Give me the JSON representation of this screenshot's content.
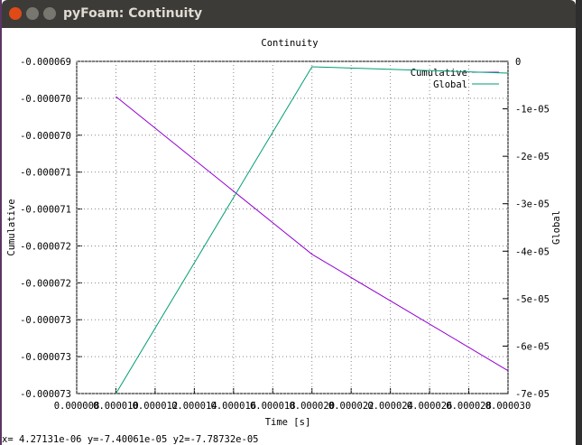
{
  "window": {
    "title": "pyFoam: Continuity"
  },
  "status_bar": "x= 4.27131e-06 y=-7.40061e-05 y2=-7.78732e-05",
  "chart_data": {
    "type": "line",
    "title": "Continuity",
    "x_label": "Time [s]",
    "y_label": "Cumulative",
    "y2_label": "Global",
    "x": [
      1e-05,
      2e-05,
      3e-05
    ],
    "series": [
      {
        "name": "Cumulative",
        "color": "#9400d3",
        "values": [
          -6.9477e-05,
          -7.1613e-05,
          -7.319e-05
        ]
      },
      {
        "name": "Global",
        "color": "#009e73",
        "axis": "y2",
        "values": [
          -7e-05,
          -1.14e-06,
          -2.47e-06
        ]
      }
    ],
    "xlim": [
      8e-06,
      3e-05
    ],
    "xticks": [
      {
        "value": 8e-06,
        "label": "0.000008"
      },
      {
        "value": 1e-05,
        "label": "0.000010"
      },
      {
        "value": 1.2e-05,
        "label": "0.000012"
      },
      {
        "value": 1.4e-05,
        "label": "0.000014"
      },
      {
        "value": 1.6e-05,
        "label": "0.000016"
      },
      {
        "value": 1.8e-05,
        "label": "0.000018"
      },
      {
        "value": 2e-05,
        "label": "0.000020"
      },
      {
        "value": 2.2e-05,
        "label": "0.000022"
      },
      {
        "value": 2.4e-05,
        "label": "0.000024"
      },
      {
        "value": 2.6e-05,
        "label": "0.000026"
      },
      {
        "value": 2.8e-05,
        "label": "0.000028"
      },
      {
        "value": 3e-05,
        "label": "0.000030"
      }
    ],
    "ylim": [
      -7.35e-05,
      -6.9e-05
    ],
    "yticks": [
      {
        "value": -6.9e-05,
        "label": "-0.000069"
      },
      {
        "value": -6.95e-05,
        "label": "-0.000070"
      },
      {
        "value": -7e-05,
        "label": "-0.000070"
      },
      {
        "value": -7.05e-05,
        "label": "-0.000071"
      },
      {
        "value": -7.1e-05,
        "label": "-0.000071"
      },
      {
        "value": -7.15e-05,
        "label": "-0.000072"
      },
      {
        "value": -7.2e-05,
        "label": "-0.000072"
      },
      {
        "value": -7.25e-05,
        "label": "-0.000073"
      },
      {
        "value": -7.3e-05,
        "label": "-0.000073"
      },
      {
        "value": -7.35e-05,
        "label": "-0.000073"
      }
    ],
    "y2lim": [
      -7e-05,
      0
    ],
    "y2ticks": [
      0,
      {
        "value": -1e-05,
        "label": "-1e-05"
      },
      {
        "value": -2e-05,
        "label": "-2e-05"
      },
      {
        "value": -3e-05,
        "label": "-3e-05"
      },
      {
        "value": -4e-05,
        "label": "-4e-05"
      },
      {
        "value": -5e-05,
        "label": "-5e-05"
      },
      {
        "value": -6e-05,
        "label": "-6e-05"
      },
      {
        "value": -7e-05,
        "label": "-7e-05"
      }
    ],
    "grid": true,
    "legend": "top-right"
  }
}
